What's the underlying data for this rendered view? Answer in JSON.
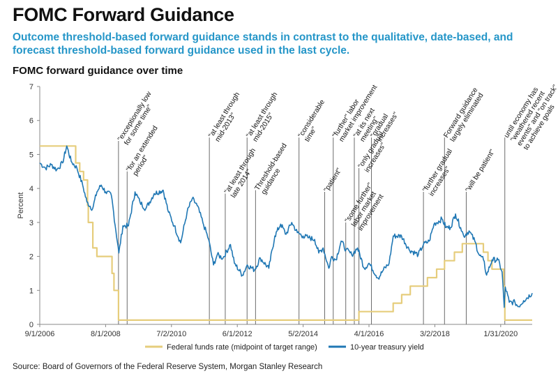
{
  "title": "FOMC Forward Guidance",
  "subtitle": "Outcome threshold-based forward guidance stands in contrast to the qualitative, date-based, and forecast threshold-based forward guidance used in the last cycle.",
  "source": "Source: Board of Governors of the Federal Reserve System, Morgan Stanley Research",
  "colors": {
    "fed_funds": "#e6cd7c",
    "treasury": "#1f77b4",
    "title_accent": "#2596c8"
  },
  "chart_data": {
    "type": "line",
    "title": "FOMC forward guidance over time",
    "ylabel": "Percent",
    "ylim": [
      0,
      7
    ],
    "yticks": [
      "0",
      "1",
      "2",
      "3",
      "4",
      "5",
      "6",
      "7"
    ],
    "xlim": [
      "2006-09-01",
      "2020-12-31"
    ],
    "xticks": [
      "9/1/2006",
      "8/1/2008",
      "7/2/2010",
      "6/1/2012",
      "5/2/2014",
      "4/1/2016",
      "3/2/2018",
      "1/31/2020"
    ],
    "xtick_dates": [
      "2006-09-01",
      "2008-08-01",
      "2010-07-02",
      "2012-06-01",
      "2014-05-02",
      "2016-04-01",
      "2018-03-02",
      "2020-01-31"
    ],
    "series": [
      {
        "name": "Federal funds rate (midpoint of target range)",
        "step": true,
        "x": [
          "2006-09-01",
          "2007-09-18",
          "2007-10-31",
          "2007-12-11",
          "2008-01-22",
          "2008-01-30",
          "2008-03-18",
          "2008-04-30",
          "2008-10-08",
          "2008-10-29",
          "2008-12-16",
          "2015-12-16",
          "2016-12-14",
          "2017-03-15",
          "2017-06-14",
          "2017-12-13",
          "2018-03-21",
          "2018-06-13",
          "2018-09-26",
          "2018-12-19",
          "2019-07-31",
          "2019-09-18",
          "2019-10-30",
          "2020-03-03",
          "2020-03-15",
          "2020-12-31"
        ],
        "values": [
          5.25,
          4.75,
          4.5,
          4.25,
          3.5,
          3.0,
          2.25,
          2.0,
          1.5,
          1.0,
          0.125,
          0.375,
          0.625,
          0.875,
          1.125,
          1.375,
          1.625,
          1.875,
          2.125,
          2.375,
          2.125,
          1.875,
          1.625,
          1.125,
          0.125,
          0.125
        ]
      },
      {
        "name": "10-year treasury yield",
        "x": [
          "2006-09-01",
          "2006-11-01",
          "2007-01-01",
          "2007-03-01",
          "2007-05-01",
          "2007-06-15",
          "2007-08-01",
          "2007-10-01",
          "2007-12-01",
          "2008-01-15",
          "2008-03-15",
          "2008-05-01",
          "2008-06-15",
          "2008-08-01",
          "2008-10-01",
          "2008-12-20",
          "2009-02-01",
          "2009-04-01",
          "2009-06-10",
          "2009-08-01",
          "2009-10-01",
          "2009-12-31",
          "2010-04-05",
          "2010-06-01",
          "2010-08-01",
          "2010-10-08",
          "2010-12-15",
          "2011-02-08",
          "2011-04-01",
          "2011-06-01",
          "2011-08-01",
          "2011-09-22",
          "2011-11-01",
          "2012-01-01",
          "2012-03-20",
          "2012-05-01",
          "2012-07-25",
          "2012-09-15",
          "2012-12-01",
          "2013-02-01",
          "2013-05-02",
          "2013-07-05",
          "2013-09-05",
          "2013-11-01",
          "2014-01-01",
          "2014-03-01",
          "2014-05-01",
          "2014-07-01",
          "2014-09-01",
          "2014-10-15",
          "2014-12-01",
          "2015-01-30",
          "2015-03-01",
          "2015-04-15",
          "2015-06-10",
          "2015-08-01",
          "2015-10-01",
          "2015-12-01",
          "2016-02-11",
          "2016-04-01",
          "2016-07-08",
          "2016-09-01",
          "2016-11-01",
          "2016-12-15",
          "2017-03-13",
          "2017-06-01",
          "2017-09-07",
          "2017-11-01",
          "2018-01-01",
          "2018-02-21",
          "2018-05-17",
          "2018-07-01",
          "2018-08-15",
          "2018-10-08",
          "2018-12-01",
          "2019-01-03",
          "2019-03-01",
          "2019-05-01",
          "2019-06-15",
          "2019-08-01",
          "2019-09-03",
          "2019-11-01",
          "2020-01-02",
          "2020-02-15",
          "2020-03-09",
          "2020-03-20",
          "2020-05-01",
          "2020-07-01",
          "2020-08-04",
          "2020-10-01",
          "2020-12-31"
        ],
        "values": [
          4.75,
          4.6,
          4.7,
          4.55,
          4.75,
          5.25,
          4.8,
          4.6,
          4.1,
          3.6,
          3.4,
          3.9,
          4.1,
          3.9,
          3.8,
          2.1,
          2.9,
          2.9,
          3.9,
          3.6,
          3.4,
          3.85,
          3.95,
          3.3,
          2.9,
          2.4,
          3.3,
          3.7,
          3.5,
          3.0,
          2.5,
          1.75,
          2.05,
          1.95,
          2.35,
          1.8,
          1.45,
          1.75,
          1.6,
          1.95,
          1.65,
          2.6,
          2.95,
          2.65,
          3.0,
          2.7,
          2.6,
          2.55,
          2.5,
          2.1,
          2.25,
          1.65,
          2.0,
          1.9,
          2.45,
          2.2,
          2.05,
          2.25,
          1.65,
          1.8,
          1.36,
          1.6,
          1.8,
          2.6,
          2.6,
          2.2,
          2.05,
          2.35,
          2.45,
          2.95,
          3.1,
          2.85,
          2.85,
          3.25,
          2.85,
          2.6,
          2.75,
          2.45,
          2.05,
          1.9,
          1.45,
          1.9,
          1.9,
          1.55,
          0.5,
          1.1,
          0.65,
          0.65,
          0.52,
          0.7,
          0.92
        ]
      }
    ],
    "annotations": [
      {
        "label": "\"exceptionally low for some time\"",
        "date": "2008-12-16",
        "top": 5.4
      },
      {
        "label": "\"for an extended period\"",
        "date": "2009-03-18",
        "top": 4.5
      },
      {
        "label": "\"at least through mid-2013\"",
        "date": "2011-08-09",
        "top": 5.5
      },
      {
        "label": "\"at least through late 2014\"",
        "date": "2012-01-25",
        "top": 3.85
      },
      {
        "label": "\"at least through mid-2015\"",
        "date": "2012-09-13",
        "top": 5.5
      },
      {
        "label": "Threshold-based guidance",
        "date": "2012-12-12",
        "top": 3.95
      },
      {
        "label": "\"considerable time\"",
        "date": "2014-03-19",
        "top": 5.5
      },
      {
        "label": "\"patient\"",
        "date": "2014-12-17",
        "top": 3.9
      },
      {
        "label": "\"further\" labor market improvement",
        "date": "2015-03-18",
        "top": 5.5
      },
      {
        "label": "\"some further\" labor market improvement",
        "date": "2015-07-29",
        "top": 3.0
      },
      {
        "label": "\"at its next meeting\"",
        "date": "2015-10-28",
        "top": 5.5
      },
      {
        "label": "\"only gradual increases\"",
        "date": "2015-12-16",
        "top": 4.6
      },
      {
        "label": "\"gradual increases\"",
        "date": "2016-04-27",
        "top": 5.5
      },
      {
        "label": "\"further gradual increases\"",
        "date": "2017-11-01",
        "top": 3.9
      },
      {
        "label": "Forward guidance largely eliminated",
        "date": "2018-06-13",
        "top": 5.5
      },
      {
        "label": "\"will be patient\"",
        "date": "2019-01-30",
        "top": 3.9
      },
      {
        "label": "until economy has \"weathered recent events\" and \"on track\" to achieve goals",
        "date": "2020-03-15",
        "top": 5.5
      }
    ],
    "legend": {
      "placement": "bottom",
      "entries": [
        "Federal funds rate (midpoint of target range)",
        "10-year treasury yield"
      ]
    },
    "grid": false
  }
}
